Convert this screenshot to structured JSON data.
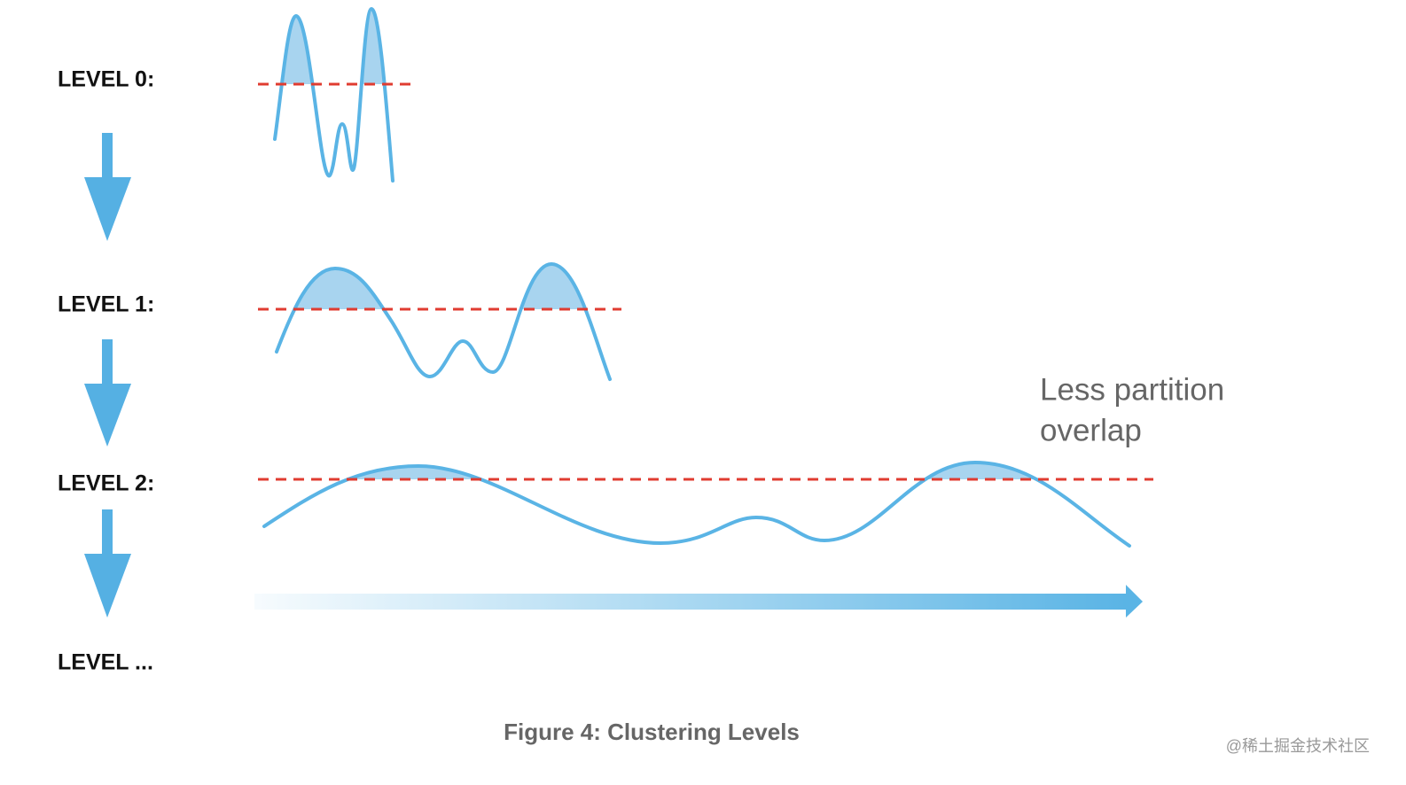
{
  "levels": [
    "LEVEL 0:",
    "LEVEL 1:",
    "LEVEL 2:",
    "LEVEL ..."
  ],
  "annotation": [
    "Less partition",
    "overlap"
  ],
  "caption": "Figure 4: Clustering Levels",
  "watermark": "@稀土掘金技术社区"
}
